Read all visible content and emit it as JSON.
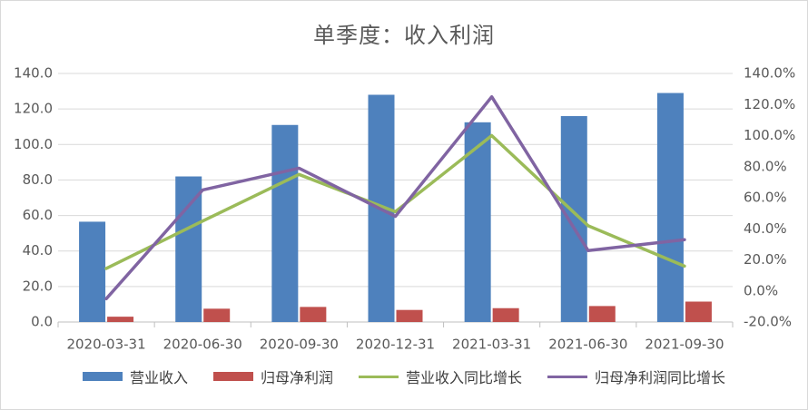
{
  "chart_data": {
    "type": "bar",
    "title": "单季度：收入利润",
    "categories": [
      "2020-03-31",
      "2020-06-30",
      "2020-09-30",
      "2020-12-31",
      "2021-03-31",
      "2021-06-30",
      "2021-09-30"
    ],
    "series": [
      {
        "name": "营业收入",
        "kind": "bar",
        "axis": "left",
        "color": "#4e81bd",
        "values": [
          56.5,
          82.0,
          111.0,
          128.0,
          112.5,
          116.0,
          129.0
        ]
      },
      {
        "name": "归母净利润",
        "kind": "bar",
        "axis": "left",
        "color": "#c0504d",
        "values": [
          3.0,
          7.5,
          8.5,
          6.8,
          7.8,
          9.0,
          11.5
        ]
      },
      {
        "name": "营业收入同比增长",
        "kind": "line",
        "axis": "right",
        "color": "#9bbb59",
        "values": [
          14.5,
          45.0,
          75.0,
          51.0,
          100.0,
          42.0,
          16.0
        ]
      },
      {
        "name": "归母净利润同比增长",
        "kind": "line",
        "axis": "right",
        "color": "#8064a2",
        "values": [
          -5.0,
          65.0,
          79.0,
          48.0,
          125.0,
          26.0,
          33.0
        ]
      }
    ],
    "left_axis": {
      "min": 0,
      "max": 140,
      "step": 20,
      "tick_labels": [
        "0.0",
        "20.0",
        "40.0",
        "60.0",
        "80.0",
        "100.0",
        "120.0",
        "140.0"
      ]
    },
    "right_axis": {
      "min": -20,
      "max": 140,
      "step": 20,
      "tick_labels": [
        "-20.0%",
        "0.0%",
        "20.0%",
        "40.0%",
        "60.0%",
        "80.0%",
        "100.0%",
        "120.0%",
        "140.0%"
      ]
    },
    "grid": true,
    "legend_position": "bottom"
  }
}
